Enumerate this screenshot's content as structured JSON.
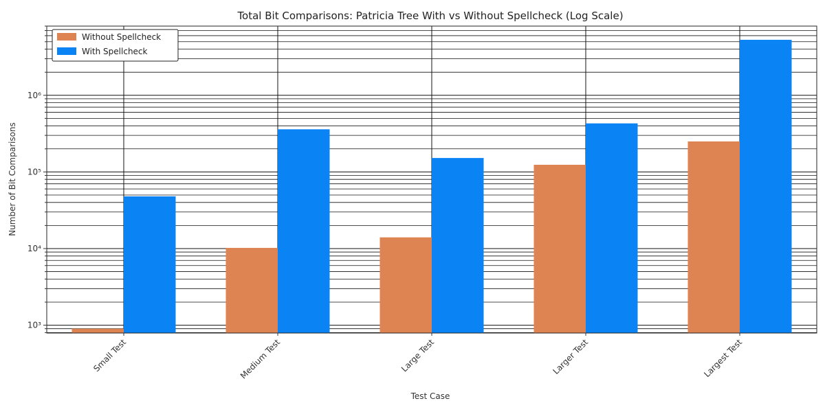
{
  "chart_data": {
    "type": "bar",
    "title": "Total Bit Comparisons: Patricia Tree With vs Without Spellcheck (Log Scale)",
    "xlabel": "Test Case",
    "ylabel": "Number of Bit Comparisons",
    "yscale": "log",
    "ylim": [
      790,
      8000000
    ],
    "ytick_labels": [
      "10³",
      "10⁴",
      "10⁵",
      "10⁶"
    ],
    "categories": [
      "Small Test",
      "Medium Test",
      "Large Test",
      "Larger Test",
      "Largest Test"
    ],
    "series": [
      {
        "name": "Without Spellcheck",
        "color": "#dd8452",
        "values": [
          900,
          10200,
          14000,
          124000,
          250000
        ]
      },
      {
        "name": "With Spellcheck",
        "color": "#0a84f5",
        "values": [
          48000,
          360000,
          152000,
          430000,
          5300000
        ]
      }
    ],
    "grid": true,
    "legend_position": "top-left"
  }
}
